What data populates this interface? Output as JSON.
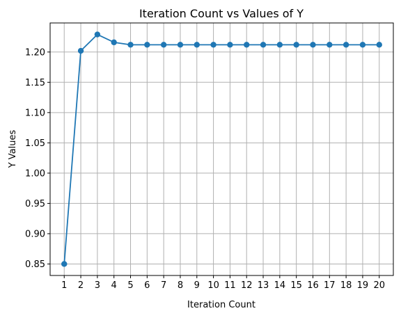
{
  "chart_data": {
    "type": "line",
    "title": "Iteration Count vs Values of Y",
    "xlabel": "Iteration Count",
    "ylabel": "Y Values",
    "x": [
      1,
      2,
      3,
      4,
      5,
      6,
      7,
      8,
      9,
      10,
      11,
      12,
      13,
      14,
      15,
      16,
      17,
      18,
      19,
      20
    ],
    "series": [
      {
        "values": [
          0.85,
          1.202,
          1.229,
          1.216,
          1.212,
          1.212,
          1.212,
          1.212,
          1.212,
          1.212,
          1.212,
          1.212,
          1.212,
          1.212,
          1.212,
          1.212,
          1.212,
          1.212,
          1.212,
          1.212
        ],
        "color": "#1f77b4",
        "marker": "circle"
      }
    ],
    "xlim": [
      0.15,
      20.85
    ],
    "ylim": [
      0.831,
      1.248
    ],
    "yticks": [
      0.85,
      0.9,
      0.95,
      1.0,
      1.05,
      1.1,
      1.15,
      1.2
    ],
    "ytick_labels": [
      "0.85",
      "0.90",
      "0.95",
      "1.00",
      "1.05",
      "1.10",
      "1.15",
      "1.20"
    ],
    "grid": true,
    "legend": null
  }
}
